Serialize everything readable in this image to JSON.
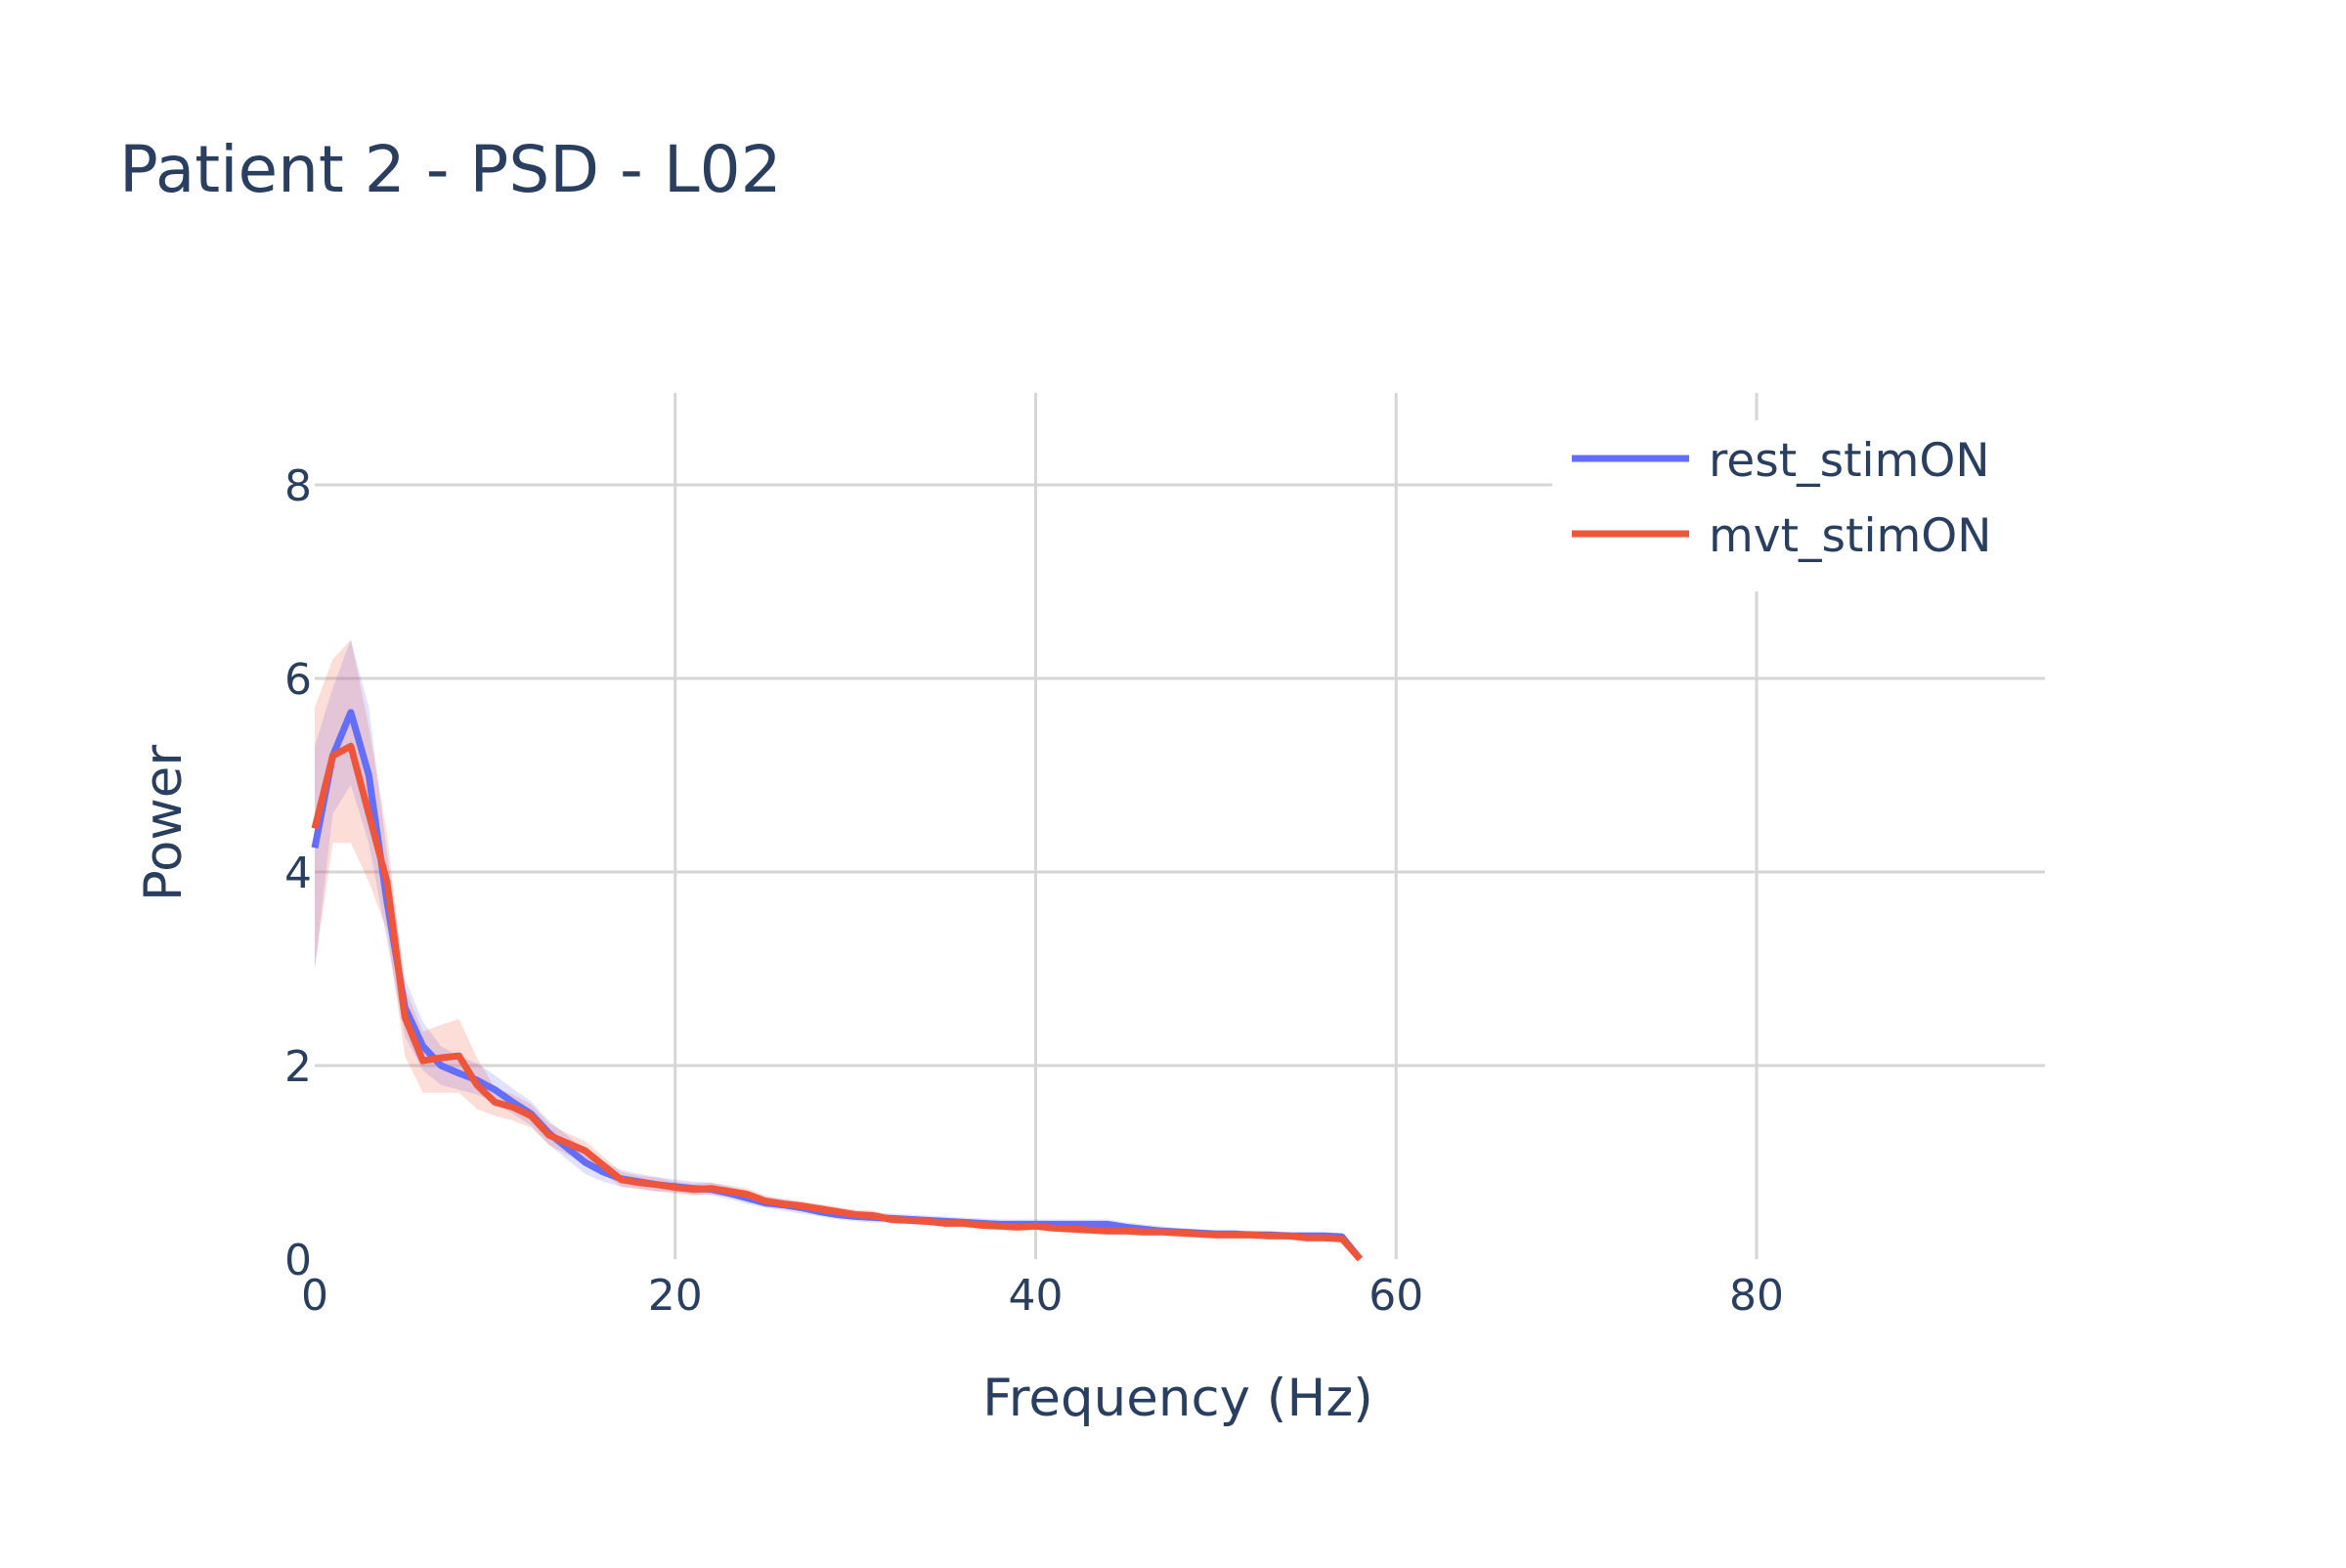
{
  "chart_data": {
    "type": "line",
    "title": "Patient 2 - PSD - L02",
    "xlabel": "Frequency (Hz)",
    "ylabel": "Power",
    "xlim": [
      0,
      96
    ],
    "ylim": [
      0,
      8.95
    ],
    "x_ticks": [
      0,
      20,
      40,
      60,
      80
    ],
    "y_ticks": [
      0,
      2,
      4,
      6,
      8
    ],
    "grid": true,
    "legend_position": "top-right",
    "series": [
      {
        "name": "rest_stimON",
        "color": "#636efa",
        "band_color": "rgba(99,110,250,0.2)",
        "x": [
          0,
          1,
          2,
          3,
          4,
          5,
          6,
          7,
          8,
          9,
          10,
          11,
          12,
          13,
          14,
          15,
          16,
          17,
          18,
          19,
          20,
          21,
          22,
          23,
          24,
          25,
          26,
          27,
          28,
          29,
          30,
          31,
          32,
          33,
          34,
          35,
          36,
          37,
          38,
          39,
          40,
          41,
          42,
          43,
          44,
          45,
          46,
          47,
          48,
          49,
          50,
          51,
          52,
          53,
          54,
          55,
          56,
          57,
          58
        ],
        "values": [
          4.25,
          5.2,
          5.65,
          5.0,
          3.7,
          2.6,
          2.2,
          2.0,
          1.92,
          1.85,
          1.75,
          1.62,
          1.5,
          1.3,
          1.15,
          1.0,
          0.9,
          0.83,
          0.8,
          0.77,
          0.75,
          0.73,
          0.72,
          0.68,
          0.63,
          0.58,
          0.56,
          0.53,
          0.49,
          0.46,
          0.44,
          0.43,
          0.42,
          0.41,
          0.4,
          0.39,
          0.38,
          0.37,
          0.36,
          0.36,
          0.36,
          0.36,
          0.36,
          0.36,
          0.36,
          0.33,
          0.31,
          0.29,
          0.28,
          0.27,
          0.26,
          0.26,
          0.25,
          0.25,
          0.24,
          0.24,
          0.24,
          0.23,
          0.0
        ],
        "lower": [
          3.0,
          4.6,
          4.9,
          4.3,
          3.3,
          2.3,
          1.95,
          1.8,
          1.75,
          1.7,
          1.62,
          1.5,
          1.38,
          1.18,
          1.03,
          0.88,
          0.8,
          0.75,
          0.73,
          0.7,
          0.69,
          0.67,
          0.66,
          0.62,
          0.57,
          0.53,
          0.5,
          0.47,
          0.44,
          0.41,
          0.39,
          0.38,
          0.37,
          0.36,
          0.35,
          0.34,
          0.33,
          0.32,
          0.31,
          0.31,
          0.31,
          0.31,
          0.31,
          0.31,
          0.31,
          0.29,
          0.27,
          0.25,
          0.24,
          0.23,
          0.22,
          0.22,
          0.21,
          0.21,
          0.2,
          0.2,
          0.2,
          0.19,
          0.0
        ],
        "upper": [
          5.3,
          5.9,
          6.4,
          5.7,
          4.2,
          2.9,
          2.45,
          2.2,
          2.1,
          2.02,
          1.9,
          1.76,
          1.63,
          1.43,
          1.28,
          1.13,
          1.0,
          0.92,
          0.88,
          0.85,
          0.82,
          0.8,
          0.79,
          0.75,
          0.7,
          0.64,
          0.62,
          0.59,
          0.55,
          0.51,
          0.49,
          0.48,
          0.47,
          0.46,
          0.45,
          0.44,
          0.43,
          0.42,
          0.41,
          0.41,
          0.41,
          0.41,
          0.41,
          0.41,
          0.41,
          0.38,
          0.36,
          0.34,
          0.32,
          0.31,
          0.3,
          0.3,
          0.29,
          0.29,
          0.28,
          0.28,
          0.28,
          0.27,
          0.0
        ]
      },
      {
        "name": "mvt_stimON",
        "color": "#ef553b",
        "band_color": "rgba(239,85,59,0.2)",
        "x": [
          0,
          1,
          2,
          3,
          4,
          5,
          6,
          7,
          8,
          9,
          10,
          11,
          12,
          13,
          14,
          15,
          16,
          17,
          18,
          19,
          20,
          21,
          22,
          23,
          24,
          25,
          26,
          27,
          28,
          29,
          30,
          31,
          32,
          33,
          34,
          35,
          36,
          37,
          38,
          39,
          40,
          41,
          42,
          43,
          44,
          45,
          46,
          47,
          48,
          49,
          50,
          51,
          52,
          53,
          54,
          55,
          56,
          57,
          58
        ],
        "values": [
          4.45,
          5.2,
          5.3,
          4.6,
          3.9,
          2.5,
          2.05,
          2.08,
          2.1,
          1.8,
          1.62,
          1.57,
          1.48,
          1.28,
          1.2,
          1.12,
          0.97,
          0.82,
          0.79,
          0.77,
          0.74,
          0.72,
          0.73,
          0.7,
          0.67,
          0.6,
          0.57,
          0.55,
          0.52,
          0.49,
          0.46,
          0.45,
          0.41,
          0.4,
          0.39,
          0.37,
          0.37,
          0.35,
          0.34,
          0.33,
          0.34,
          0.32,
          0.31,
          0.3,
          0.29,
          0.29,
          0.28,
          0.28,
          0.27,
          0.26,
          0.25,
          0.25,
          0.25,
          0.24,
          0.24,
          0.22,
          0.22,
          0.21,
          0.0
        ],
        "lower": [
          3.0,
          4.3,
          4.3,
          3.9,
          3.4,
          2.1,
          1.72,
          1.72,
          1.72,
          1.55,
          1.48,
          1.43,
          1.36,
          1.18,
          1.08,
          1.0,
          0.88,
          0.75,
          0.72,
          0.7,
          0.68,
          0.66,
          0.67,
          0.64,
          0.61,
          0.55,
          0.52,
          0.5,
          0.47,
          0.44,
          0.41,
          0.4,
          0.37,
          0.36,
          0.35,
          0.33,
          0.33,
          0.31,
          0.3,
          0.29,
          0.3,
          0.28,
          0.27,
          0.26,
          0.25,
          0.25,
          0.24,
          0.24,
          0.23,
          0.22,
          0.21,
          0.21,
          0.21,
          0.2,
          0.2,
          0.18,
          0.18,
          0.17,
          0.0
        ],
        "upper": [
          5.7,
          6.2,
          6.4,
          5.5,
          4.4,
          2.8,
          2.35,
          2.42,
          2.48,
          2.08,
          1.77,
          1.7,
          1.6,
          1.4,
          1.3,
          1.22,
          1.06,
          0.9,
          0.86,
          0.84,
          0.8,
          0.78,
          0.79,
          0.76,
          0.73,
          0.66,
          0.62,
          0.6,
          0.57,
          0.54,
          0.51,
          0.5,
          0.45,
          0.44,
          0.43,
          0.41,
          0.41,
          0.39,
          0.38,
          0.37,
          0.38,
          0.36,
          0.35,
          0.34,
          0.33,
          0.33,
          0.32,
          0.32,
          0.31,
          0.3,
          0.29,
          0.29,
          0.29,
          0.28,
          0.28,
          0.26,
          0.26,
          0.25,
          0.0
        ]
      }
    ]
  }
}
